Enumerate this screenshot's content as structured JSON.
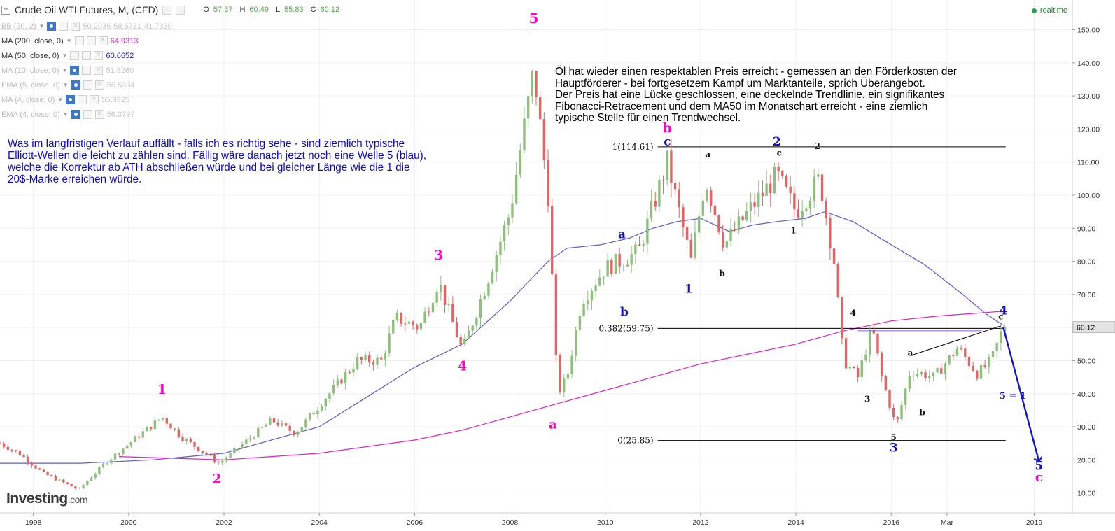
{
  "header": {
    "title": "Crude Oil WTI Futures, M, (CFD)",
    "ohlc": [
      {
        "key": "O",
        "value": "57.37"
      },
      {
        "key": "H",
        "value": "60.49"
      },
      {
        "key": "L",
        "value": "55.83"
      },
      {
        "key": "C",
        "value": "60.12"
      }
    ],
    "realtime": "realtime"
  },
  "indicators": [
    {
      "label": "BB (20, 2)",
      "values": [
        "50.2035",
        "58.6731",
        "41.7339"
      ],
      "color": "#c8c8c8",
      "faded": true
    },
    {
      "label": "MA (200, close, 0)",
      "values": [
        "64.9313"
      ],
      "color": "#e020c8",
      "faded": false
    },
    {
      "label": "MA (50, close, 0)",
      "values": [
        "60.6652"
      ],
      "color": "#2020a0",
      "faded": false
    },
    {
      "label": "MA (10, close, 0)",
      "values": [
        "51.5260"
      ],
      "color": "#c8c8c8",
      "faded": true
    },
    {
      "label": "EMA (5, close, 0)",
      "values": [
        "55.5334"
      ],
      "color": "#c8c8c8",
      "faded": true
    },
    {
      "label": "MA (4, close, 0)",
      "values": [
        "55.8925"
      ],
      "color": "#c8c8c8",
      "faded": true
    },
    {
      "label": "EMA (4, close, 0)",
      "values": [
        "56.3797"
      ],
      "color": "#c8c8c8",
      "faded": true
    }
  ],
  "annotations": {
    "left_text": [
      "Was im langfristigen Verlauf auffällt - falls ich es richtig sehe - sind ziemlich typische",
      "Elliott-Wellen die leicht zu zählen sind. Fällig wäre danach jetzt noch eine Welle 5 (blau),",
      "welche die Korrektur ab ATH abschließen würde und bei gleicher Länge wie die 1 die",
      "20$-Marke erreichen würde."
    ],
    "right_text": [
      "Öl hat wieder einen respektablen Preis erreicht - gemessen an den Förderkosten der",
      "Hauptförderer - bei fortgesetzem Kampf um Marktanteile, sprich Überangebot.",
      "Der Preis hat eine Lücke geschlossen, eine deckelnde Trendlinie, ein signifikantes",
      "Fibonacci-Retracement und dem MA50 im Monatschart erreicht - eine ziemlich",
      "typische Stelle für einen Trendwechsel."
    ]
  },
  "logo": {
    "main": "Investing",
    "suffix": ".com"
  },
  "colors": {
    "up": "#8ec07c",
    "down": "#e06666",
    "ma200": "#e020c8",
    "ma50": "#5b5bd6",
    "wave_magenta": "#ff00cc",
    "wave_blue": "#1010c8",
    "grid": "#f0f0f0"
  },
  "chart_data": {
    "type": "candlestick",
    "x_range": [
      1997.3,
      2019.8
    ],
    "y_range": [
      4,
      159
    ],
    "x_ticks": [
      {
        "x": 1998,
        "label": "1998"
      },
      {
        "x": 2000,
        "label": "2000"
      },
      {
        "x": 2002,
        "label": "2002"
      },
      {
        "x": 2004,
        "label": "2004"
      },
      {
        "x": 2006,
        "label": "2006"
      },
      {
        "x": 2008,
        "label": "2008"
      },
      {
        "x": 2010,
        "label": "2010"
      },
      {
        "x": 2012,
        "label": "2012"
      },
      {
        "x": 2014,
        "label": "2014"
      },
      {
        "x": 2016,
        "label": "2016"
      },
      {
        "x": 2017.17,
        "label": "Mar"
      },
      {
        "x": 2019,
        "label": "2019"
      }
    ],
    "y_ticks": [
      "10.00",
      "20.00",
      "30.00",
      "40.00",
      "50.00",
      "60.00",
      "70.00",
      "80.00",
      "90.00",
      "100.00",
      "110.00",
      "120.00",
      "130.00",
      "140.00",
      "150.00"
    ],
    "last_price": {
      "value": 60.12,
      "label": "60.12"
    },
    "price_anchors": [
      [
        1997.3,
        25
      ],
      [
        1997.7,
        22
      ],
      [
        1998.2,
        16
      ],
      [
        1998.95,
        11
      ],
      [
        1999.5,
        19
      ],
      [
        2000.7,
        33
      ],
      [
        2001.1,
        27
      ],
      [
        2001.9,
        19
      ],
      [
        2003.0,
        32
      ],
      [
        2003.5,
        28
      ],
      [
        2004.8,
        50
      ],
      [
        2005.3,
        50
      ],
      [
        2005.6,
        63
      ],
      [
        2006.1,
        60
      ],
      [
        2006.5,
        74
      ],
      [
        2007.0,
        53
      ],
      [
        2007.5,
        73
      ],
      [
        2008.0,
        95
      ],
      [
        2008.5,
        138
      ],
      [
        2008.8,
        100
      ],
      [
        2009.0,
        40
      ],
      [
        2009.2,
        45
      ],
      [
        2009.5,
        68
      ],
      [
        2010.0,
        78
      ],
      [
        2010.3,
        80
      ],
      [
        2010.7,
        83
      ],
      [
        2011.3,
        110
      ],
      [
        2011.8,
        80
      ],
      [
        2012.1,
        105
      ],
      [
        2012.5,
        85
      ],
      [
        2013.0,
        95
      ],
      [
        2013.6,
        106
      ],
      [
        2014.0,
        95
      ],
      [
        2014.5,
        105
      ],
      [
        2014.8,
        80
      ],
      [
        2015.0,
        50
      ],
      [
        2015.3,
        45
      ],
      [
        2015.6,
        60
      ],
      [
        2015.8,
        45
      ],
      [
        2016.1,
        30
      ],
      [
        2016.4,
        47
      ],
      [
        2016.9,
        45
      ],
      [
        2017.4,
        54
      ],
      [
        2017.8,
        46
      ],
      [
        2018.1,
        50
      ],
      [
        2018.35,
        60.12
      ]
    ],
    "ma50_points": [
      [
        1997.3,
        19
      ],
      [
        1999.0,
        19
      ],
      [
        2000.5,
        20
      ],
      [
        2002.0,
        22
      ],
      [
        2004.0,
        30
      ],
      [
        2006.0,
        48
      ],
      [
        2007.0,
        55
      ],
      [
        2008.0,
        68
      ],
      [
        2008.8,
        80
      ],
      [
        2009.2,
        84
      ],
      [
        2009.9,
        85
      ],
      [
        2010.5,
        87
      ],
      [
        2011.0,
        90
      ],
      [
        2011.5,
        92
      ],
      [
        2012.0,
        93
      ],
      [
        2012.6,
        89
      ],
      [
        2013.1,
        91
      ],
      [
        2013.6,
        92
      ],
      [
        2014.2,
        93
      ],
      [
        2014.6,
        95
      ],
      [
        2015.2,
        92
      ],
      [
        2016.0,
        85
      ],
      [
        2016.7,
        79
      ],
      [
        2017.5,
        70
      ],
      [
        2018.0,
        64
      ],
      [
        2018.35,
        60.67
      ]
    ],
    "ma200_points": [
      [
        1999.8,
        21
      ],
      [
        2002.0,
        20
      ],
      [
        2003.0,
        21
      ],
      [
        2004.0,
        22
      ],
      [
        2005.0,
        24
      ],
      [
        2006.0,
        26
      ],
      [
        2007.0,
        29
      ],
      [
        2008.0,
        33
      ],
      [
        2009.0,
        37
      ],
      [
        2010.0,
        41
      ],
      [
        2011.0,
        45
      ],
      [
        2012.0,
        49
      ],
      [
        2013.0,
        52
      ],
      [
        2014.0,
        55
      ],
      [
        2015.0,
        59
      ],
      [
        2016.0,
        62
      ],
      [
        2017.0,
        63.5
      ],
      [
        2018.35,
        64.93
      ]
    ],
    "horizontal_lines": [
      {
        "label": "1(114.61)",
        "value": 114.61,
        "from": 2011.1,
        "to": 2018.4
      },
      {
        "label": "0.382(59.75)",
        "value": 59.75,
        "from": 2011.1,
        "to": 2018.4
      },
      {
        "label": "0(25.85)",
        "value": 25.85,
        "from": 2011.1,
        "to": 2018.4
      }
    ],
    "segments": [
      {
        "from": [
          2016.4,
          51.5
        ],
        "to": [
          2018.3,
          60.5
        ],
        "color": "#000000"
      },
      {
        "from": [
          2015.3,
          59.0
        ],
        "to": [
          2017.9,
          59.0
        ],
        "color": "#8a5adf"
      },
      {
        "from": [
          2018.35,
          60.12
        ],
        "to": [
          2019.1,
          19.5
        ],
        "color": "#1515c8",
        "arrow": true
      }
    ],
    "wave_labels": [
      {
        "text": "1",
        "x": 2000.7,
        "y": 40,
        "color": "magenta",
        "size": 19
      },
      {
        "text": "2",
        "x": 2001.85,
        "y": 13,
        "color": "magenta",
        "size": 19
      },
      {
        "text": "3",
        "x": 2006.5,
        "y": 80.5,
        "color": "magenta",
        "size": 19
      },
      {
        "text": "4",
        "x": 2007.0,
        "y": 47,
        "color": "magenta",
        "size": 19
      },
      {
        "text": "5",
        "x": 2008.5,
        "y": 152,
        "color": "magenta",
        "size": 20
      },
      {
        "text": "a",
        "x": 2008.9,
        "y": 29.5,
        "color": "magenta",
        "size": 18
      },
      {
        "text": "b",
        "x": 2011.3,
        "y": 119,
        "color": "magenta",
        "size": 19
      },
      {
        "text": "c",
        "x": 2011.3,
        "y": 115,
        "color": "blue",
        "size": 17
      },
      {
        "text": "a",
        "x": 2010.35,
        "y": 87,
        "color": "blue",
        "size": 17
      },
      {
        "text": "b",
        "x": 2010.4,
        "y": 63.5,
        "color": "blue",
        "size": 17
      },
      {
        "text": "1",
        "x": 2011.75,
        "y": 70.5,
        "color": "blue",
        "size": 17
      },
      {
        "text": "2",
        "x": 2013.6,
        "y": 115,
        "color": "blue",
        "size": 17
      },
      {
        "text": "3",
        "x": 2016.05,
        "y": 22.5,
        "color": "blue",
        "size": 17
      },
      {
        "text": "4",
        "x": 2018.35,
        "y": 64,
        "color": "blue",
        "size": 17
      },
      {
        "text": "5",
        "x": 2019.1,
        "y": 17,
        "color": "blue",
        "size": 17
      },
      {
        "text": "c",
        "x": 2019.1,
        "y": 13.5,
        "color": "magenta",
        "size": 18
      },
      {
        "text": "a",
        "x": 2012.15,
        "y": 111.5,
        "color": "black",
        "size": 12
      },
      {
        "text": "b",
        "x": 2012.45,
        "y": 75.5,
        "color": "black",
        "size": 12
      },
      {
        "text": "c",
        "x": 2013.65,
        "y": 112,
        "color": "black",
        "size": 12
      },
      {
        "text": "1",
        "x": 2013.95,
        "y": 88.5,
        "color": "black",
        "size": 12
      },
      {
        "text": "2",
        "x": 2014.45,
        "y": 114,
        "color": "black",
        "size": 12
      },
      {
        "text": "4",
        "x": 2015.2,
        "y": 63.5,
        "color": "black",
        "size": 12
      },
      {
        "text": "3",
        "x": 2015.5,
        "y": 37.5,
        "color": "black",
        "size": 12
      },
      {
        "text": "5",
        "x": 2016.05,
        "y": 26,
        "color": "black",
        "size": 12
      },
      {
        "text": "a",
        "x": 2016.4,
        "y": 51.5,
        "color": "black",
        "size": 12
      },
      {
        "text": "b",
        "x": 2016.65,
        "y": 33.5,
        "color": "black",
        "size": 12
      },
      {
        "text": "c",
        "x": 2018.3,
        "y": 62.5,
        "color": "black",
        "size": 12
      },
      {
        "text": "5 = 1",
        "x": 2018.55,
        "y": 38.5,
        "color": "blue",
        "size": 13
      }
    ]
  }
}
